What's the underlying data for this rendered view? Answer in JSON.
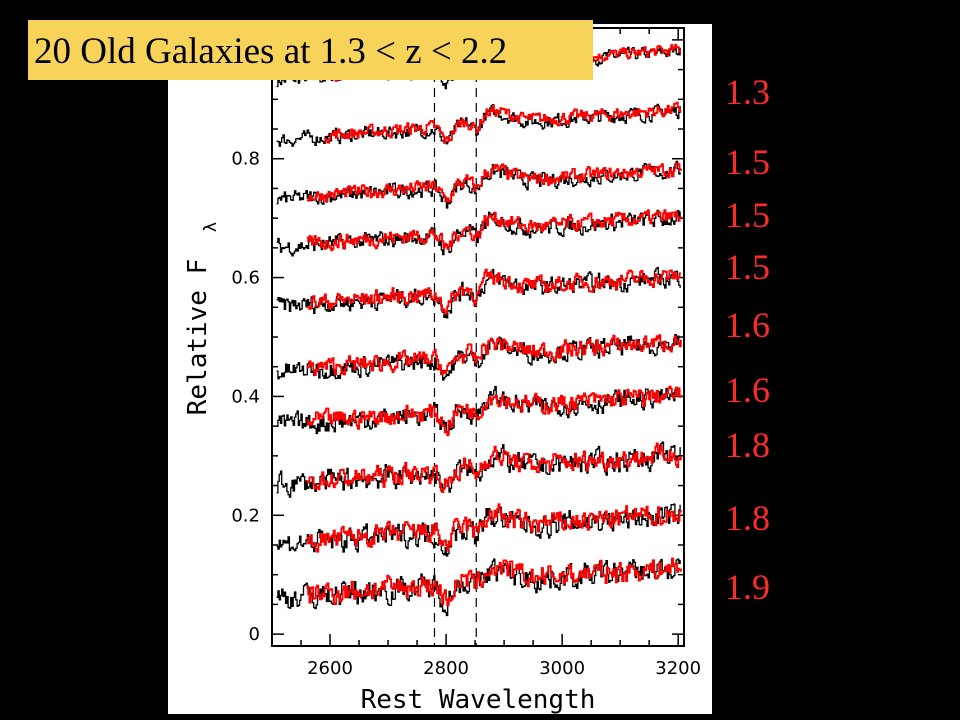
{
  "title": "20 Old Galaxies at 1.3 < z < 2.2",
  "chart_data": {
    "type": "line",
    "xlabel": "Rest Wavelength",
    "ylabel_main": "Relative F",
    "ylabel_sub": "λ",
    "xlim": [
      2500,
      3210
    ],
    "ylim": [
      -0.02,
      1.02
    ],
    "xticks": [
      "2600",
      "2800",
      "3000",
      "3200"
    ],
    "xtick_values": [
      2600,
      2800,
      3000,
      3200
    ],
    "yticks": [
      "0",
      "0.2",
      "0.4",
      "0.6",
      "0.8"
    ],
    "ytick_values": [
      0,
      0.2,
      0.4,
      0.6,
      0.8
    ],
    "reference_lines_x": [
      2780,
      2852
    ],
    "series_colors": {
      "observed": "#000000",
      "template": "#ff0000"
    },
    "spectra_offsets": [
      0.93,
      0.83,
      0.73,
      0.65,
      0.55,
      0.44,
      0.35,
      0.25,
      0.15,
      0.06
    ],
    "redshift_labels": [
      "1.3",
      "1.5",
      "1.5",
      "1.5",
      "1.6",
      "1.6",
      "1.8",
      "1.8",
      "1.9"
    ]
  }
}
